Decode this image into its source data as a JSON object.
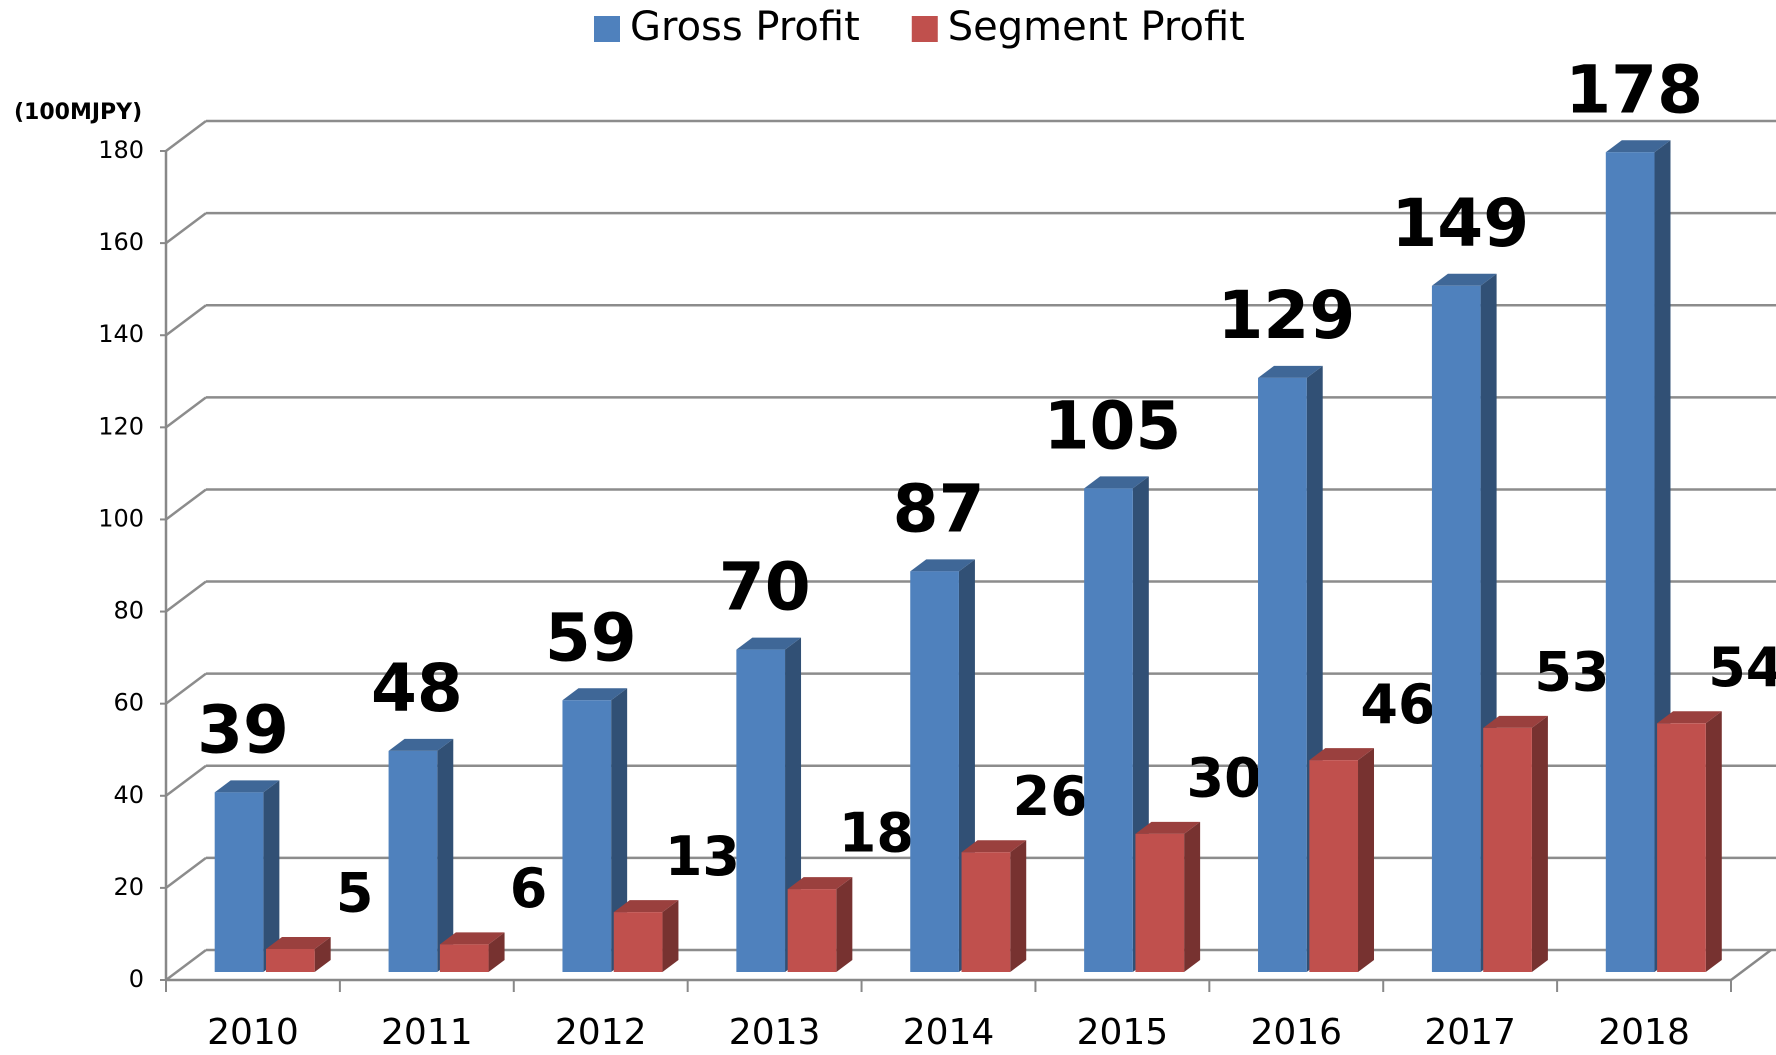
{
  "chart_data": {
    "type": "bar",
    "y_label": "(100MJPY)",
    "categories": [
      "2010",
      "2011",
      "2012",
      "2013",
      "2014",
      "2015",
      "2016",
      "2017",
      "2018"
    ],
    "series": [
      {
        "name": "Gross Profit",
        "color": "#4f81bd",
        "values": [
          39,
          48,
          59,
          70,
          87,
          105,
          129,
          149,
          178
        ]
      },
      {
        "name": "Segment Profit",
        "color": "#c0504d",
        "values": [
          5,
          6,
          13,
          18,
          26,
          30,
          46,
          53,
          54
        ]
      }
    ],
    "ylim": [
      0,
      180
    ],
    "yticks": [
      0,
      20,
      40,
      60,
      80,
      100,
      120,
      140,
      160,
      180
    ],
    "grid": true,
    "legend": "top",
    "three_d": true
  }
}
